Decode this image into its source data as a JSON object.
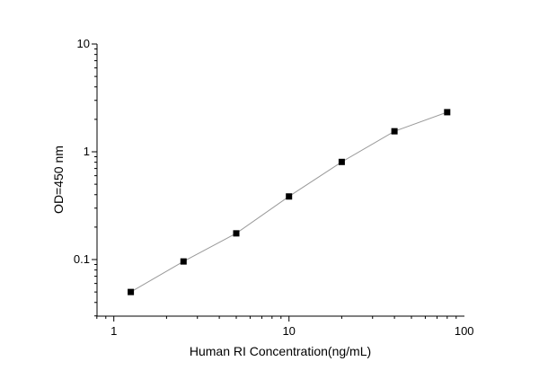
{
  "chart_data": {
    "type": "line",
    "title": "",
    "xlabel": "Human RI Concentration(ng/mL)",
    "ylabel": "OD=450 nm",
    "xscale": "log",
    "yscale": "log",
    "xlim": [
      0.8,
      100
    ],
    "ylim": [
      0.03,
      10
    ],
    "xticks": [
      1,
      10,
      100
    ],
    "xtick_labels": [
      "1",
      "10",
      "100"
    ],
    "yticks": [
      0.1,
      1,
      10
    ],
    "ytick_labels": [
      "0.1",
      "1",
      "10"
    ],
    "grid": false,
    "marker": "square",
    "line_color": "#999999",
    "marker_color": "#000000",
    "series": [
      {
        "x": [
          1.25,
          2.5,
          5,
          10,
          20,
          40,
          80
        ],
        "y": [
          0.05,
          0.096,
          0.175,
          0.385,
          0.805,
          1.55,
          2.33
        ]
      }
    ]
  }
}
